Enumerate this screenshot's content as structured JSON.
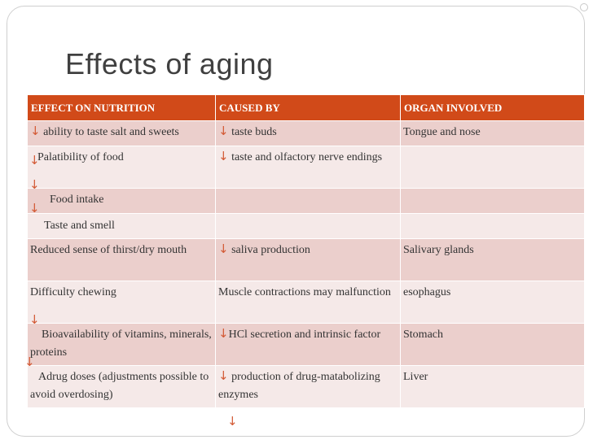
{
  "title": "Effects of aging",
  "icons": {
    "down_arrow": "↓",
    "arrow_color": "#d35a35"
  },
  "colors": {
    "header": "#d14a19",
    "row_odd": "#ebcfcc",
    "row_even": "#f5e9e8"
  },
  "table": {
    "headers": [
      "EFFECT ON NUTRITION",
      "CAUSED BY",
      "ORGAN INVOLVED"
    ],
    "rows": [
      [
        "ability to taste salt and sweets",
        "taste buds",
        "Tongue and nose"
      ],
      [
        "Palatibility of food",
        "taste and olfactory nerve endings",
        ""
      ],
      [
        "Food intake",
        "",
        ""
      ],
      [
        "Taste and smell",
        "",
        ""
      ],
      [
        "Reduced sense of thirst/dry mouth",
        "saliva production",
        "Salivary glands"
      ],
      [
        "Difficulty chewing",
        "Muscle contractions may malfunction",
        "esophagus"
      ],
      [
        "Bioavailability of vitamins, minerals, proteins",
        "HCl secretion and intrinsic factor",
        "Stomach"
      ],
      [
        "Adrug doses (adjustments possible to avoid overdosing)",
        "production of drug-matabolizing enzymes",
        "Liver"
      ]
    ]
  }
}
